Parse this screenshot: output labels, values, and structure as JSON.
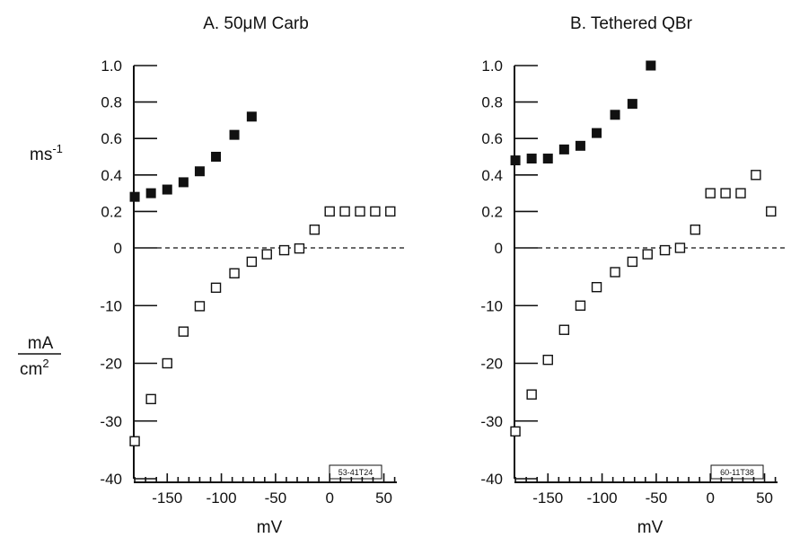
{
  "y_unit_rate": "ms",
  "y_unit_rate_sup": "-1",
  "y_unit_current_num": "mA",
  "y_unit_current_den": "cm",
  "y_unit_current_den_sup": "2",
  "chart_data": [
    {
      "type": "scatter",
      "title": "A. 50μM Carb",
      "xlabel": "mV",
      "code_label": "53-41T24",
      "xlim": [
        -190,
        62
      ],
      "x_ticks": [
        -150,
        -100,
        -50,
        0,
        50
      ],
      "x_tick_labels": [
        "-150",
        "-100",
        "-50",
        "0",
        "50"
      ],
      "y_ticks": [
        -40,
        -30,
        -20,
        -10,
        0,
        0.2,
        0.4,
        0.6,
        0.8,
        1.0
      ],
      "y_tick_labels": [
        "-40",
        "-30",
        "-20",
        "-10",
        "0",
        "0.2",
        "0.4",
        "0.6",
        "0.8",
        "1.0"
      ],
      "upper_range": [
        0,
        1.0
      ],
      "lower_range": [
        -40,
        0
      ],
      "series": [
        {
          "marker": "filled-square",
          "x": [
            -180,
            -165,
            -150,
            -135,
            -120,
            -105,
            -88,
            -72
          ],
          "y": [
            0.28,
            0.3,
            0.32,
            0.36,
            0.42,
            0.5,
            0.62,
            0.72
          ]
        },
        {
          "marker": "open-square",
          "x": [
            -180,
            -165,
            -150,
            -135,
            -120,
            -105,
            -88,
            -72,
            -58,
            -42,
            -28,
            -14,
            0,
            14,
            28,
            42,
            56
          ],
          "y": [
            -33.5,
            -26.2,
            -20.0,
            -14.5,
            -10.1,
            -6.9,
            -4.4,
            -2.4,
            -1.1,
            -0.4,
            -0.1,
            0.1,
            0.2,
            0.2,
            0.2,
            0.2,
            0.2
          ]
        }
      ]
    },
    {
      "type": "scatter",
      "title": "B. Tethered QBr",
      "xlabel": "mV",
      "code_label": "60-11T38",
      "xlim": [
        -190,
        62
      ],
      "x_ticks": [
        -150,
        -100,
        -50,
        0,
        50
      ],
      "x_tick_labels": [
        "-150",
        "-100",
        "-50",
        "0",
        "50"
      ],
      "y_ticks": [
        -40,
        -30,
        -20,
        -10,
        0,
        0.2,
        0.4,
        0.6,
        0.8,
        1.0
      ],
      "y_tick_labels": [
        "-40",
        "-30",
        "-20",
        "-10",
        "0",
        "0.2",
        "0.4",
        "0.6",
        "0.8",
        "1.0"
      ],
      "upper_range": [
        0,
        1.0
      ],
      "lower_range": [
        -40,
        0
      ],
      "series": [
        {
          "marker": "filled-square",
          "x": [
            -180,
            -165,
            -150,
            -135,
            -120,
            -105,
            -88,
            -72,
            -55
          ],
          "y": [
            0.48,
            0.49,
            0.49,
            0.54,
            0.56,
            0.63,
            0.73,
            0.79,
            1.0
          ]
        },
        {
          "marker": "open-square",
          "x": [
            -180,
            -165,
            -150,
            -135,
            -120,
            -105,
            -88,
            -72,
            -58,
            -42,
            -28,
            -14,
            0,
            14,
            28,
            42,
            56
          ],
          "y": [
            -31.8,
            -25.4,
            -19.4,
            -14.2,
            -10.0,
            -6.8,
            -4.2,
            -2.4,
            -1.1,
            -0.4,
            0.0,
            0.1,
            0.3,
            0.3,
            0.3,
            0.4,
            0.2
          ]
        }
      ]
    }
  ]
}
